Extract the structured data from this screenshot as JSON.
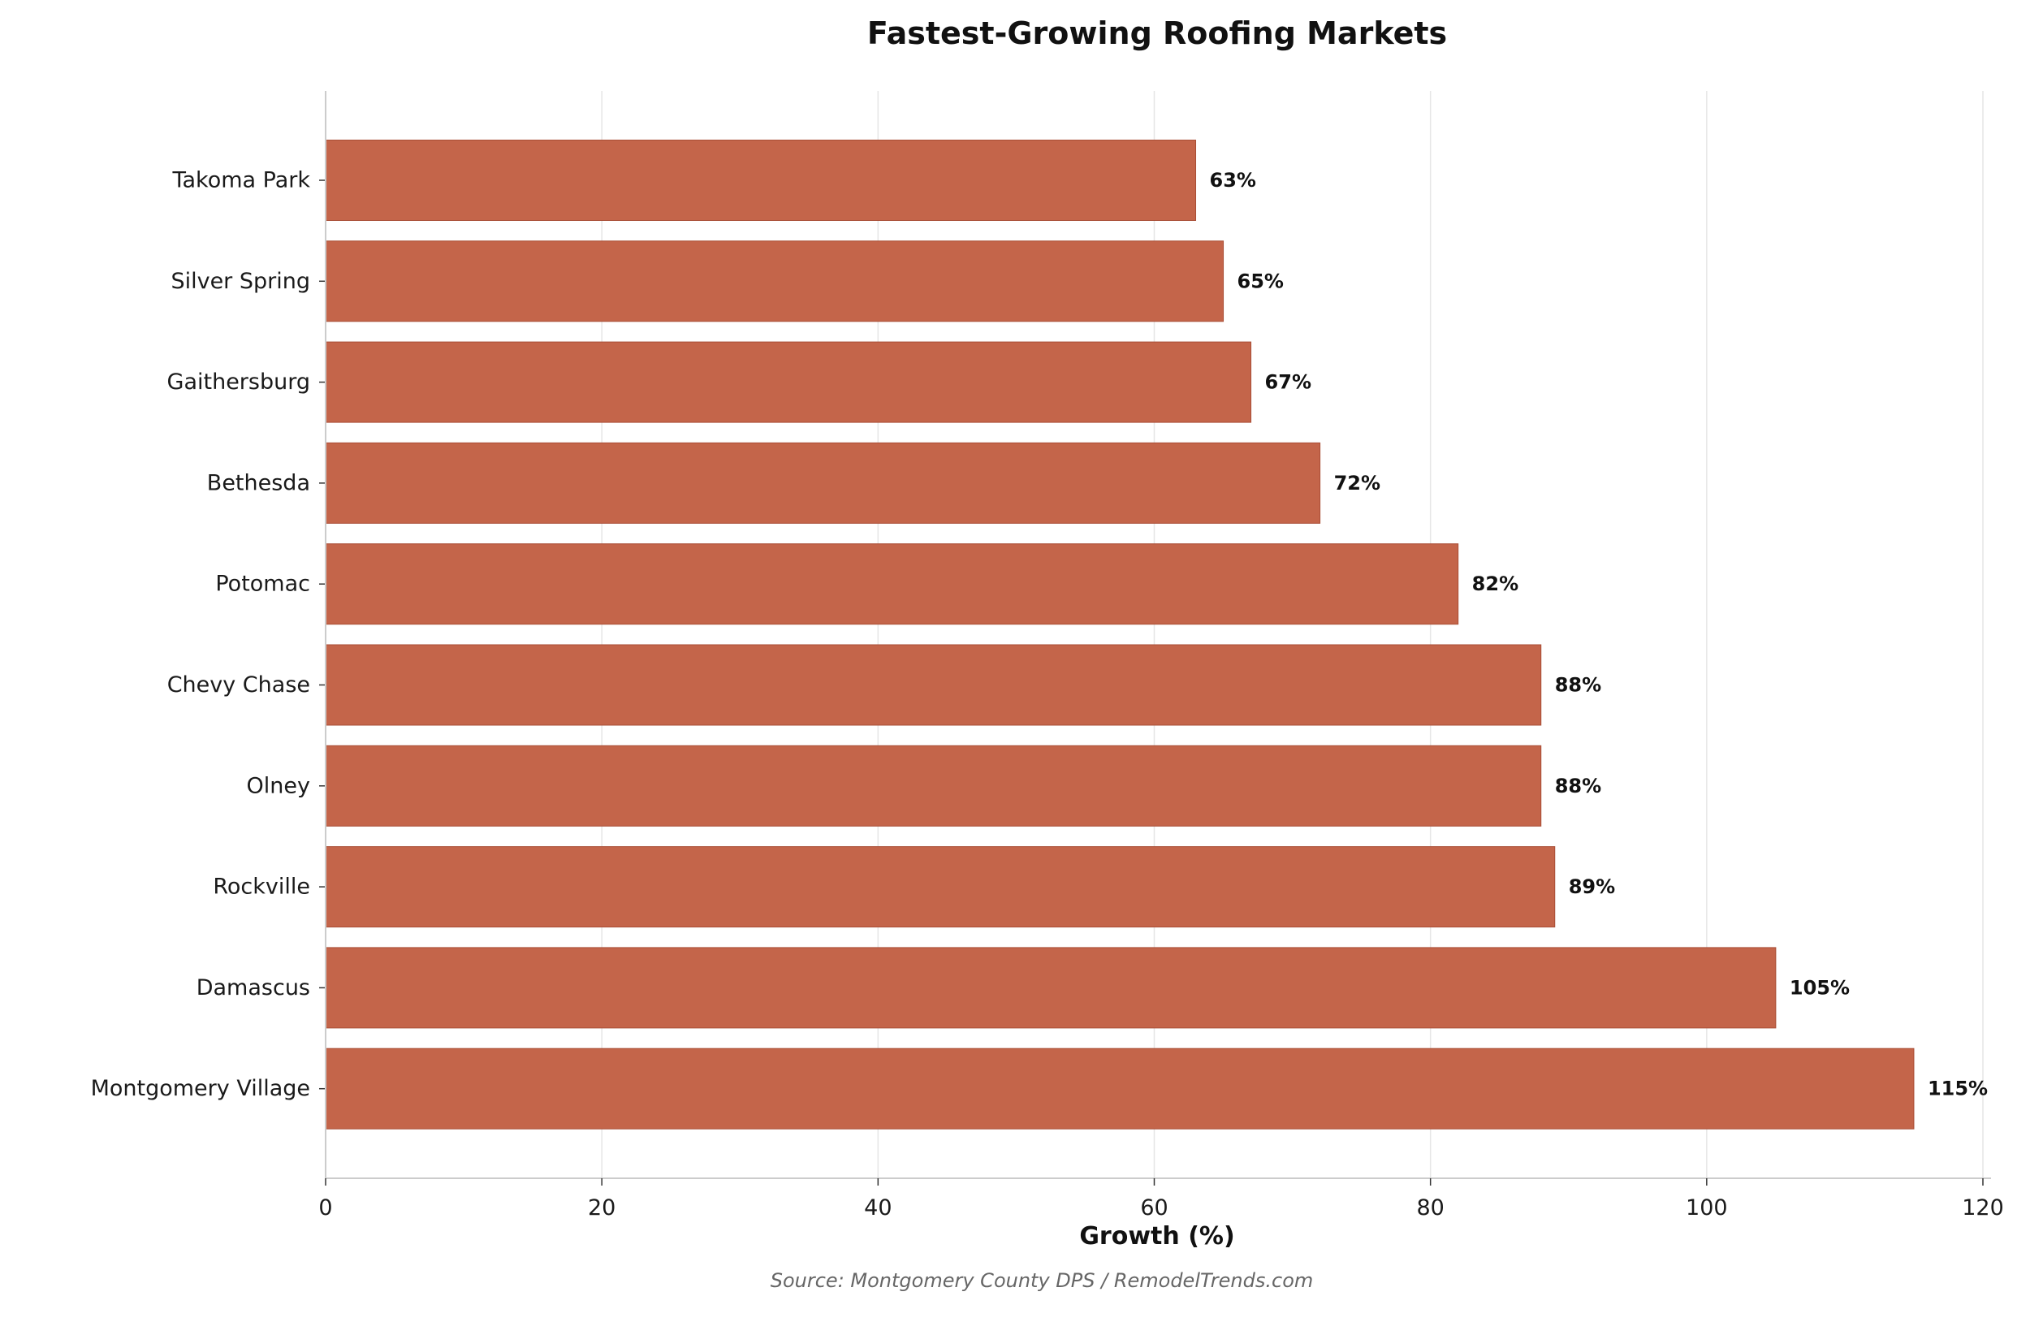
{
  "chart_data": {
    "type": "bar",
    "orientation": "horizontal",
    "title": "Fastest-Growing Roofing Markets",
    "xlabel": "Growth (%)",
    "ylabel": "",
    "source": "Source: Montgomery County DPS / RemodelTrends.com",
    "categories": [
      "Takoma Park",
      "Silver Spring",
      "Gaithersburg",
      "Bethesda",
      "Potomac",
      "Chevy Chase",
      "Olney",
      "Rockville",
      "Damascus",
      "Montgomery Village"
    ],
    "values": [
      63,
      65,
      67,
      72,
      82,
      88,
      88,
      89,
      105,
      115
    ],
    "value_labels": [
      "63%",
      "65%",
      "67%",
      "72%",
      "82%",
      "88%",
      "88%",
      "89%",
      "105%",
      "115%"
    ],
    "xlim": [
      0,
      120
    ],
    "xticks": [
      0,
      20,
      40,
      60,
      80,
      100,
      120
    ],
    "xtick_labels": [
      "0",
      "20",
      "40",
      "60",
      "80",
      "100",
      "120"
    ],
    "grid": "vertical",
    "bar_color": "#c4654a",
    "bar_edge_color": "#a94d35"
  }
}
